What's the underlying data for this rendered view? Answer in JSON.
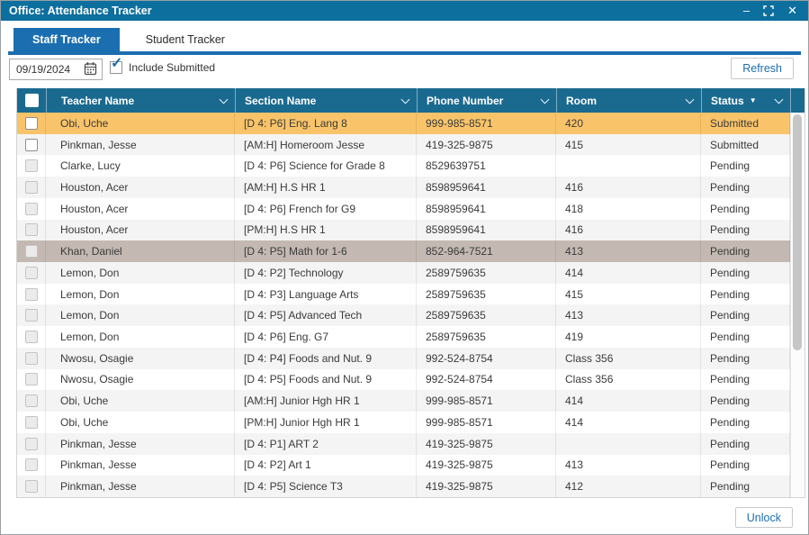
{
  "window": {
    "title": "Office: Attendance Tracker",
    "controls": {
      "minimize_glyph": "–",
      "close_glyph": "✕"
    }
  },
  "tabs": [
    {
      "label": "Staff Tracker",
      "active": true
    },
    {
      "label": "Student Tracker",
      "active": false
    }
  ],
  "toolbar": {
    "date_value": "09/19/2024",
    "include_submitted_label": "Include Submitted",
    "include_submitted_checked": true,
    "refresh_label": "Refresh"
  },
  "icons": {
    "checkmark": "✓"
  },
  "table": {
    "columns": [
      {
        "label": "Teacher Name"
      },
      {
        "label": "Section Name"
      },
      {
        "label": "Phone Number"
      },
      {
        "label": "Room"
      },
      {
        "label": "Status",
        "sort": "desc",
        "sort_indicator": "▼"
      }
    ],
    "rows": [
      {
        "teacher": "Obi, Uche",
        "section": "[D 4: P6] Eng. Lang 8",
        "phone": "999-985-8571",
        "room": "420",
        "status": "Submitted",
        "checkbox_enabled": true,
        "highlight": "orange"
      },
      {
        "teacher": "Pinkman, Jesse",
        "section": "[AM:H] Homeroom Jesse",
        "phone": "419-325-9875",
        "room": "415",
        "status": "Submitted",
        "checkbox_enabled": true,
        "highlight": null
      },
      {
        "teacher": "Clarke, Lucy",
        "section": "[D 4: P6] Science for Grade 8",
        "phone": "8529639751",
        "room": "",
        "status": "Pending",
        "checkbox_enabled": false,
        "highlight": null
      },
      {
        "teacher": "Houston, Acer",
        "section": "[AM:H] H.S HR 1",
        "phone": "8598959641",
        "room": "416",
        "status": "Pending",
        "checkbox_enabled": false,
        "highlight": null
      },
      {
        "teacher": "Houston, Acer",
        "section": "[D 4: P6] French for G9",
        "phone": "8598959641",
        "room": "418",
        "status": "Pending",
        "checkbox_enabled": false,
        "highlight": null
      },
      {
        "teacher": "Houston, Acer",
        "section": "[PM:H] H.S HR 1",
        "phone": "8598959641",
        "room": "416",
        "status": "Pending",
        "checkbox_enabled": false,
        "highlight": null
      },
      {
        "teacher": "Khan, Daniel",
        "section": "[D 4: P5] Math for 1-6",
        "phone": "852-964-7521",
        "room": "413",
        "status": "Pending",
        "checkbox_enabled": false,
        "highlight": "taupe"
      },
      {
        "teacher": "Lemon, Don",
        "section": "[D 4: P2] Technology",
        "phone": "2589759635",
        "room": "414",
        "status": "Pending",
        "checkbox_enabled": false,
        "highlight": null
      },
      {
        "teacher": "Lemon, Don",
        "section": "[D 4: P3] Language Arts",
        "phone": "2589759635",
        "room": "415",
        "status": "Pending",
        "checkbox_enabled": false,
        "highlight": null
      },
      {
        "teacher": "Lemon, Don",
        "section": "[D 4: P5] Advanced Tech",
        "phone": "2589759635",
        "room": "413",
        "status": "Pending",
        "checkbox_enabled": false,
        "highlight": null
      },
      {
        "teacher": "Lemon, Don",
        "section": "[D 4: P6] Eng. G7",
        "phone": "2589759635",
        "room": "419",
        "status": "Pending",
        "checkbox_enabled": false,
        "highlight": null
      },
      {
        "teacher": "Nwosu, Osagie",
        "section": "[D 4: P4] Foods and Nut. 9",
        "phone": "992-524-8754",
        "room": "Class 356",
        "status": "Pending",
        "checkbox_enabled": false,
        "highlight": null
      },
      {
        "teacher": "Nwosu, Osagie",
        "section": "[D 4: P5] Foods and Nut. 9",
        "phone": "992-524-8754",
        "room": "Class 356",
        "status": "Pending",
        "checkbox_enabled": false,
        "highlight": null
      },
      {
        "teacher": "Obi, Uche",
        "section": "[AM:H] Junior Hgh HR 1",
        "phone": "999-985-8571",
        "room": "414",
        "status": "Pending",
        "checkbox_enabled": false,
        "highlight": null
      },
      {
        "teacher": "Obi, Uche",
        "section": "[PM:H] Junior Hgh HR 1",
        "phone": "999-985-8571",
        "room": "414",
        "status": "Pending",
        "checkbox_enabled": false,
        "highlight": null
      },
      {
        "teacher": "Pinkman, Jesse",
        "section": "[D 4: P1] ART 2",
        "phone": "419-325-9875",
        "room": "",
        "status": "Pending",
        "checkbox_enabled": false,
        "highlight": null
      },
      {
        "teacher": "Pinkman, Jesse",
        "section": "[D 4: P2] Art 1",
        "phone": "419-325-9875",
        "room": "413",
        "status": "Pending",
        "checkbox_enabled": false,
        "highlight": null
      },
      {
        "teacher": "Pinkman, Jesse",
        "section": "[D 4: P5] Science T3",
        "phone": "419-325-9875",
        "room": "412",
        "status": "Pending",
        "checkbox_enabled": false,
        "highlight": null
      }
    ]
  },
  "footer": {
    "unlock_label": "Unlock"
  },
  "colors": {
    "titlebar": "#0d6f9e",
    "tab_active": "#1b6eb0",
    "table_header": "#1a6a90",
    "selected_row": "#f9c469",
    "secondary_selected_row": "#c4b9b2",
    "stripe_row": "#f4f4f4",
    "accent_text": "#1b6eb0"
  }
}
